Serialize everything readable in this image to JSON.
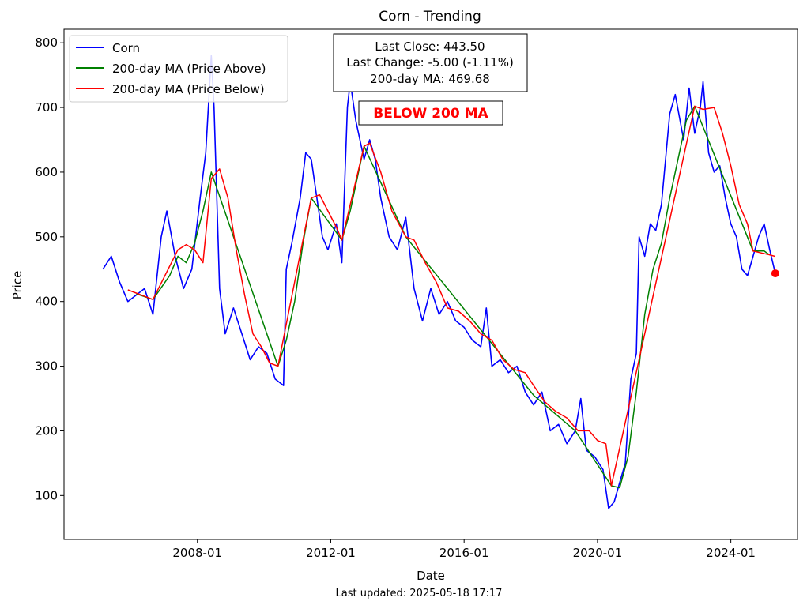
{
  "chart_data": {
    "type": "line",
    "title": "Corn - Trending",
    "xlabel": "Date",
    "ylabel": "Price",
    "x_ticks": [
      "2008-01",
      "2012-01",
      "2016-01",
      "2020-01",
      "2024-01"
    ],
    "y_ticks": [
      100,
      200,
      300,
      400,
      500,
      600,
      700,
      800
    ],
    "xlim": [
      "2004-01",
      "2026-01"
    ],
    "ylim": [
      32,
      821
    ],
    "grid": false,
    "legend_position": "top-left",
    "series": [
      {
        "name": "Corn",
        "color": "#0000ff",
        "points": [
          [
            "2005-03",
            450
          ],
          [
            "2005-06",
            470
          ],
          [
            "2005-09",
            430
          ],
          [
            "2005-12",
            400
          ],
          [
            "2006-03",
            410
          ],
          [
            "2006-06",
            420
          ],
          [
            "2006-09",
            380
          ],
          [
            "2006-12",
            500
          ],
          [
            "2007-02",
            540
          ],
          [
            "2007-05",
            470
          ],
          [
            "2007-08",
            420
          ],
          [
            "2007-11",
            450
          ],
          [
            "2008-02",
            560
          ],
          [
            "2008-04",
            630
          ],
          [
            "2008-06",
            780
          ],
          [
            "2008-07",
            700
          ],
          [
            "2008-09",
            420
          ],
          [
            "2008-11",
            350
          ],
          [
            "2009-02",
            390
          ],
          [
            "2009-05",
            350
          ],
          [
            "2009-08",
            310
          ],
          [
            "2009-11",
            330
          ],
          [
            "2010-02",
            320
          ],
          [
            "2010-05",
            280
          ],
          [
            "2010-08",
            270
          ],
          [
            "2010-09",
            450
          ],
          [
            "2010-11",
            490
          ],
          [
            "2011-02",
            560
          ],
          [
            "2011-04",
            630
          ],
          [
            "2011-06",
            620
          ],
          [
            "2011-08",
            560
          ],
          [
            "2011-10",
            500
          ],
          [
            "2011-12",
            480
          ],
          [
            "2012-03",
            520
          ],
          [
            "2012-05",
            460
          ],
          [
            "2012-07",
            700
          ],
          [
            "2012-08",
            740
          ],
          [
            "2012-10",
            680
          ],
          [
            "2013-01",
            620
          ],
          [
            "2013-03",
            650
          ],
          [
            "2013-05",
            620
          ],
          [
            "2013-07",
            560
          ],
          [
            "2013-10",
            500
          ],
          [
            "2014-01",
            480
          ],
          [
            "2014-04",
            530
          ],
          [
            "2014-07",
            420
          ],
          [
            "2014-10",
            370
          ],
          [
            "2015-01",
            420
          ],
          [
            "2015-04",
            380
          ],
          [
            "2015-07",
            400
          ],
          [
            "2015-10",
            370
          ],
          [
            "2016-01",
            360
          ],
          [
            "2016-04",
            340
          ],
          [
            "2016-07",
            330
          ],
          [
            "2016-09",
            390
          ],
          [
            "2016-11",
            300
          ],
          [
            "2017-02",
            310
          ],
          [
            "2017-05",
            290
          ],
          [
            "2017-08",
            300
          ],
          [
            "2017-11",
            260
          ],
          [
            "2018-02",
            240
          ],
          [
            "2018-05",
            260
          ],
          [
            "2018-08",
            200
          ],
          [
            "2018-11",
            210
          ],
          [
            "2019-02",
            180
          ],
          [
            "2019-05",
            200
          ],
          [
            "2019-07",
            250
          ],
          [
            "2019-09",
            170
          ],
          [
            "2019-12",
            160
          ],
          [
            "2020-03",
            140
          ],
          [
            "2020-05",
            80
          ],
          [
            "2020-07",
            90
          ],
          [
            "2020-09",
            120
          ],
          [
            "2020-11",
            150
          ],
          [
            "2021-01",
            280
          ],
          [
            "2021-03",
            320
          ],
          [
            "2021-04",
            500
          ],
          [
            "2021-06",
            470
          ],
          [
            "2021-08",
            520
          ],
          [
            "2021-10",
            510
          ],
          [
            "2021-12",
            550
          ],
          [
            "2022-03",
            690
          ],
          [
            "2022-05",
            720
          ],
          [
            "2022-08",
            650
          ],
          [
            "2022-10",
            730
          ],
          [
            "2022-12",
            660
          ],
          [
            "2023-02",
            700
          ],
          [
            "2023-03",
            740
          ],
          [
            "2023-05",
            630
          ],
          [
            "2023-07",
            600
          ],
          [
            "2023-09",
            610
          ],
          [
            "2023-11",
            560
          ],
          [
            "2024-01",
            520
          ],
          [
            "2024-03",
            500
          ],
          [
            "2024-05",
            450
          ],
          [
            "2024-07",
            440
          ],
          [
            "2024-09",
            470
          ],
          [
            "2024-11",
            500
          ],
          [
            "2025-01",
            520
          ],
          [
            "2025-03",
            480
          ],
          [
            "2025-05",
            443.5
          ]
        ]
      },
      {
        "name": "200-day MA (Price Above)",
        "color": "#008000",
        "points": [
          [
            "2006-03",
            412
          ],
          [
            "2006-09",
            403
          ],
          [
            "2007-03",
            440
          ],
          [
            "2007-06",
            470
          ],
          [
            "2007-09",
            460
          ],
          [
            "2007-12",
            490
          ],
          [
            "2008-03",
            540
          ],
          [
            "2008-06",
            600
          ],
          [
            "2010-06",
            300
          ],
          [
            "2010-09",
            340
          ],
          [
            "2010-12",
            400
          ],
          [
            "2011-03",
            490
          ],
          [
            "2011-06",
            560
          ],
          [
            "2012-05",
            495
          ],
          [
            "2012-08",
            540
          ],
          [
            "2012-11",
            600
          ],
          [
            "2013-01",
            640
          ],
          [
            "2014-04",
            500
          ],
          [
            "2018-02",
            255
          ],
          [
            "2019-05",
            200
          ],
          [
            "2020-06",
            115
          ],
          [
            "2020-09",
            112
          ],
          [
            "2020-12",
            160
          ],
          [
            "2021-03",
            260
          ],
          [
            "2021-06",
            380
          ],
          [
            "2021-09",
            450
          ],
          [
            "2021-12",
            490
          ],
          [
            "2022-03",
            560
          ],
          [
            "2022-06",
            620
          ],
          [
            "2022-09",
            680
          ],
          [
            "2022-12",
            702
          ],
          [
            "2024-09",
            478
          ],
          [
            "2025-01",
            478
          ],
          [
            "2025-03",
            472
          ]
        ]
      },
      {
        "name": "200-day MA (Price Below)",
        "color": "#ff0000",
        "points": [
          [
            "2005-12",
            418
          ],
          [
            "2006-06",
            408
          ],
          [
            "2006-09",
            403
          ],
          [
            "2007-06",
            480
          ],
          [
            "2007-09",
            488
          ],
          [
            "2007-12",
            480
          ],
          [
            "2008-03",
            460
          ],
          [
            "2008-06",
            590
          ],
          [
            "2008-09",
            605
          ],
          [
            "2008-12",
            560
          ],
          [
            "2009-03",
            480
          ],
          [
            "2009-06",
            410
          ],
          [
            "2009-09",
            350
          ],
          [
            "2009-12",
            330
          ],
          [
            "2010-03",
            305
          ],
          [
            "2010-06",
            300
          ],
          [
            "2011-06",
            560
          ],
          [
            "2011-09",
            565
          ],
          [
            "2011-12",
            540
          ],
          [
            "2012-03",
            515
          ],
          [
            "2012-05",
            495
          ],
          [
            "2013-01",
            640
          ],
          [
            "2013-03",
            645
          ],
          [
            "2013-07",
            600
          ],
          [
            "2013-11",
            540
          ],
          [
            "2014-04",
            500
          ],
          [
            "2014-07",
            495
          ],
          [
            "2014-11",
            460
          ],
          [
            "2015-03",
            430
          ],
          [
            "2015-07",
            390
          ],
          [
            "2015-11",
            385
          ],
          [
            "2016-03",
            370
          ],
          [
            "2016-07",
            350
          ],
          [
            "2016-11",
            340
          ],
          [
            "2017-03",
            310
          ],
          [
            "2017-07",
            295
          ],
          [
            "2017-11",
            290
          ],
          [
            "2018-02",
            270
          ],
          [
            "2018-06",
            245
          ],
          [
            "2018-10",
            230
          ],
          [
            "2019-02",
            220
          ],
          [
            "2019-06",
            200
          ],
          [
            "2019-10",
            200
          ],
          [
            "2020-01",
            185
          ],
          [
            "2020-04",
            180
          ],
          [
            "2020-06",
            115
          ],
          [
            "2022-12",
            702
          ],
          [
            "2023-03",
            697
          ],
          [
            "2023-07",
            700
          ],
          [
            "2023-10",
            660
          ],
          [
            "2024-01",
            610
          ],
          [
            "2024-04",
            550
          ],
          [
            "2024-07",
            520
          ],
          [
            "2024-09",
            478
          ],
          [
            "2025-03",
            472
          ],
          [
            "2025-05",
            469.68
          ]
        ]
      }
    ],
    "last_point": {
      "x": "2025-05",
      "y": 443.5,
      "color": "#ff0000"
    },
    "info_box": {
      "lines": [
        "Last Close: 443.50",
        "Last Change: -5.00 (-1.11%)",
        "200-day MA: 469.68"
      ]
    },
    "status_label": {
      "text": "BELOW 200 MA",
      "color": "#ff0000"
    },
    "footer": "Last updated: 2025-05-18 17:17"
  }
}
